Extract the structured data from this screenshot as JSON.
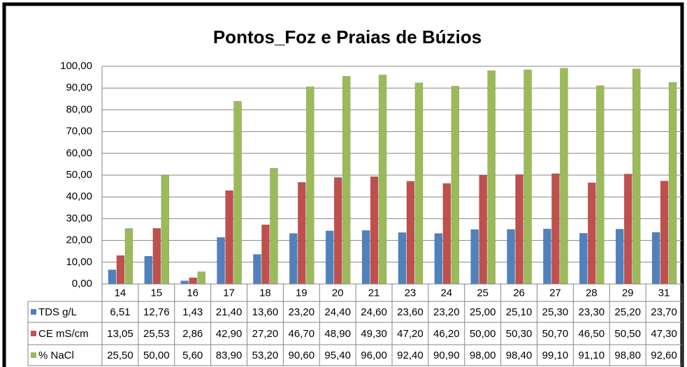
{
  "chart_data": {
    "type": "bar",
    "title": "Pontos_Foz e Praias de Búzios",
    "categories": [
      "14",
      "15",
      "16",
      "17",
      "18",
      "19",
      "20",
      "21",
      "23",
      "24",
      "25",
      "26",
      "27",
      "28",
      "29",
      "31"
    ],
    "series": [
      {
        "name": "TDS g/L",
        "color": "#4f81bd",
        "values": [
          6.51,
          12.76,
          1.43,
          21.4,
          13.6,
          23.2,
          24.4,
          24.6,
          23.6,
          23.2,
          25.0,
          25.1,
          25.3,
          23.3,
          25.2,
          23.7
        ],
        "value_labels": [
          "6,51",
          "12,76",
          "1,43",
          "21,40",
          "13,60",
          "23,20",
          "24,40",
          "24,60",
          "23,60",
          "23,20",
          "25,00",
          "25,10",
          "25,30",
          "23,30",
          "25,20",
          "23,70"
        ]
      },
      {
        "name": "CE mS/cm",
        "color": "#c0504d",
        "values": [
          13.05,
          25.53,
          2.86,
          42.9,
          27.2,
          46.7,
          48.9,
          49.3,
          47.2,
          46.2,
          50.0,
          50.3,
          50.7,
          46.5,
          50.5,
          47.3
        ],
        "value_labels": [
          "13,05",
          "25,53",
          "2,86",
          "42,90",
          "27,20",
          "46,70",
          "48,90",
          "49,30",
          "47,20",
          "46,20",
          "50,00",
          "50,30",
          "50,70",
          "46,50",
          "50,50",
          "47,30"
        ]
      },
      {
        "name": "% NaCl",
        "color": "#9bbb59",
        "values": [
          25.5,
          50.0,
          5.6,
          83.9,
          53.2,
          90.6,
          95.4,
          96.0,
          92.4,
          90.9,
          98.0,
          98.4,
          99.1,
          91.1,
          98.8,
          92.6
        ],
        "value_labels": [
          "25,50",
          "50,00",
          "5,60",
          "83,90",
          "53,20",
          "90,60",
          "95,40",
          "96,00",
          "92,40",
          "90,90",
          "98,00",
          "98,40",
          "99,10",
          "91,10",
          "98,80",
          "92,60"
        ]
      }
    ],
    "ylim": [
      0,
      100
    ],
    "yticks": [
      {
        "value": 0,
        "label": "0,00"
      },
      {
        "value": 10,
        "label": "10,00"
      },
      {
        "value": 20,
        "label": "20,00"
      },
      {
        "value": 30,
        "label": "30,00"
      },
      {
        "value": 40,
        "label": "40,00"
      },
      {
        "value": 50,
        "label": "50,00"
      },
      {
        "value": 60,
        "label": "60,00"
      },
      {
        "value": 70,
        "label": "70,00"
      },
      {
        "value": 80,
        "label": "80,00"
      },
      {
        "value": 90,
        "label": "90,00"
      },
      {
        "value": 100,
        "label": "100,00"
      }
    ],
    "grid": true
  }
}
